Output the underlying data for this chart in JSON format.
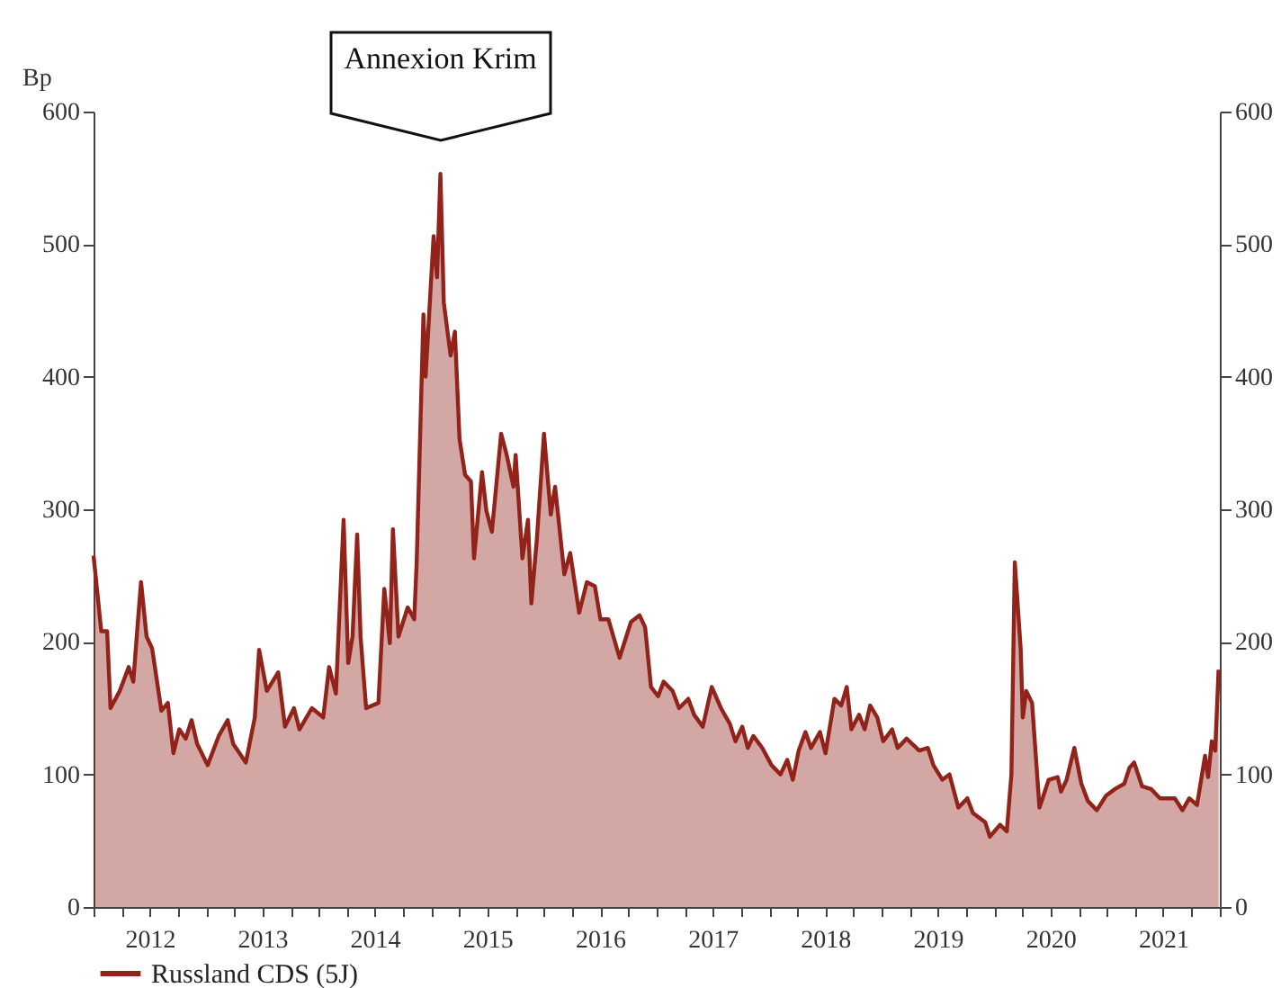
{
  "chart_data": {
    "type": "area",
    "ylabel": "Bp",
    "annotations": [
      "Annexion Krim"
    ],
    "x": [
      "2012-01-01",
      "2012-01-26",
      "2012-02-14",
      "2012-02-25",
      "2012-03-26",
      "2012-04-24",
      "2012-05-09",
      "2012-05-23",
      "2012-06-03",
      "2012-06-21",
      "2012-07-09",
      "2012-08-08",
      "2012-08-29",
      "2012-09-16",
      "2012-10-05",
      "2012-10-26",
      "2012-11-14",
      "2012-12-02",
      "2013-01-05",
      "2013-02-10",
      "2013-03-11",
      "2013-03-29",
      "2013-05-09",
      "2013-06-07",
      "2013-06-21",
      "2013-07-16",
      "2013-08-22",
      "2013-09-13",
      "2013-10-12",
      "2013-10-30",
      "2013-12-09",
      "2014-01-15",
      "2014-02-03",
      "2014-02-25",
      "2014-03-22",
      "2014-04-06",
      "2014-04-20",
      "2014-05-05",
      "2014-05-16",
      "2014-06-03",
      "2014-07-13",
      "2014-08-01",
      "2014-08-19",
      "2014-08-29",
      "2014-09-16",
      "2014-10-16",
      "2014-11-06",
      "2014-11-14",
      "2014-12-06",
      "2014-12-13",
      "2015-01-08",
      "2015-01-19",
      "2015-01-30",
      "2015-02-10",
      "2015-03-04",
      "2015-03-18",
      "2015-04-02",
      "2015-04-20",
      "2015-05-09",
      "2015-05-19",
      "2015-06-14",
      "2015-06-28",
      "2015-07-16",
      "2015-08-15",
      "2015-09-02",
      "2015-09-24",
      "2015-10-01",
      "2015-10-23",
      "2015-11-10",
      "2015-11-21",
      "2015-12-09",
      "2016-01-01",
      "2016-01-23",
      "2016-02-06",
      "2016-03-07",
      "2016-03-26",
      "2016-04-24",
      "2016-05-19",
      "2016-06-14",
      "2016-07-02",
      "2016-07-28",
      "2016-09-02",
      "2016-10-09",
      "2016-11-06",
      "2016-11-24",
      "2016-12-13",
      "2017-01-05",
      "2017-01-23",
      "2017-02-21",
      "2017-03-14",
      "2017-04-13",
      "2017-05-02",
      "2017-05-30",
      "2017-06-28",
      "2017-07-28",
      "2017-08-26",
      "2017-09-13",
      "2017-10-05",
      "2017-10-23",
      "2017-11-10",
      "2017-12-09",
      "2018-01-08",
      "2018-02-06",
      "2018-02-28",
      "2018-03-18",
      "2018-04-06",
      "2018-04-28",
      "2018-05-16",
      "2018-06-14",
      "2018-07-02",
      "2018-07-31",
      "2018-08-22",
      "2018-09-09",
      "2018-09-24",
      "2018-10-19",
      "2018-11-06",
      "2018-11-24",
      "2018-12-17",
      "2019-01-05",
      "2019-02-03",
      "2019-02-21",
      "2019-03-22",
      "2019-05-02",
      "2019-05-30",
      "2019-06-17",
      "2019-07-16",
      "2019-08-08",
      "2019-09-06",
      "2019-10-05",
      "2019-10-23",
      "2019-12-02",
      "2019-12-17",
      "2020-01-19",
      "2020-02-10",
      "2020-02-25",
      "2020-03-07",
      "2020-03-26",
      "2020-04-02",
      "2020-04-13",
      "2020-05-02",
      "2020-05-26",
      "2020-06-25",
      "2020-07-24",
      "2020-08-04",
      "2020-08-22",
      "2020-09-16",
      "2020-10-09",
      "2020-10-30",
      "2020-11-28",
      "2020-12-28",
      "2021-01-26",
      "2021-02-25",
      "2021-03-14",
      "2021-03-29",
      "2021-04-24",
      "2021-05-23",
      "2021-06-21",
      "2021-08-08",
      "2021-09-02",
      "2021-09-24",
      "2021-10-19",
      "2021-11-14",
      "2021-11-24",
      "2021-12-06",
      "2021-12-17",
      "2021-12-28"
    ],
    "series": [
      {
        "name": "Russland CDS (5J)",
        "color": "#92231a",
        "values": [
          265,
          208,
          208,
          150,
          163,
          181,
          170,
          213,
          245,
          204,
          195,
          148,
          154,
          116,
          134,
          127,
          141,
          123,
          107,
          129,
          141,
          123,
          109,
          143,
          194,
          163,
          177,
          136,
          150,
          134,
          150,
          143,
          181,
          161,
          292,
          184,
          204,
          281,
          204,
          150,
          154,
          240,
          199,
          285,
          204,
          226,
          217,
          260,
          447,
          400,
          506,
          475,
          553,
          456,
          416,
          434,
          353,
          326,
          321,
          263,
          328,
          299,
          283,
          357,
          341,
          317,
          341,
          263,
          292,
          229,
          278,
          357,
          296,
          317,
          251,
          267,
          222,
          245,
          242,
          217,
          217,
          188,
          215,
          220,
          211,
          166,
          159,
          170,
          163,
          150,
          157,
          145,
          136,
          166,
          150,
          138,
          125,
          136,
          120,
          129,
          120,
          107,
          100,
          111,
          96,
          118,
          132,
          120,
          132,
          116,
          157,
          152,
          166,
          134,
          145,
          134,
          152,
          143,
          125,
          134,
          120,
          127,
          118,
          120,
          107,
          96,
          100,
          75,
          82,
          71,
          64,
          53,
          62,
          57,
          100,
          260,
          195,
          143,
          163,
          154,
          75,
          96,
          98,
          87,
          96,
          120,
          93,
          80,
          73,
          84,
          89,
          93,
          105,
          109,
          91,
          89,
          82,
          82,
          73,
          82,
          77,
          114,
          98,
          125,
          118,
          179
        ]
      }
    ],
    "xlim": [
      "2012-01-01",
      "2022-01-01"
    ],
    "xticks": [
      {
        "value": "2012-01-01",
        "label": null
      },
      {
        "value": "2012-04-01",
        "label": null
      },
      {
        "value": "2012-07-01",
        "label": "2012"
      },
      {
        "value": "2012-10-01",
        "label": null
      },
      {
        "value": "2013-01-01",
        "label": null
      },
      {
        "value": "2013-04-01",
        "label": null
      },
      {
        "value": "2013-07-01",
        "label": "2013"
      },
      {
        "value": "2013-10-01",
        "label": null
      },
      {
        "value": "2014-01-01",
        "label": null
      },
      {
        "value": "2014-04-01",
        "label": null
      },
      {
        "value": "2014-07-01",
        "label": "2014"
      },
      {
        "value": "2014-10-01",
        "label": null
      },
      {
        "value": "2015-01-01",
        "label": null
      },
      {
        "value": "2015-04-01",
        "label": null
      },
      {
        "value": "2015-07-01",
        "label": "2015"
      },
      {
        "value": "2015-10-01",
        "label": null
      },
      {
        "value": "2016-01-01",
        "label": null
      },
      {
        "value": "2016-04-01",
        "label": null
      },
      {
        "value": "2016-07-01",
        "label": "2016"
      },
      {
        "value": "2016-10-01",
        "label": null
      },
      {
        "value": "2017-01-01",
        "label": null
      },
      {
        "value": "2017-04-01",
        "label": null
      },
      {
        "value": "2017-07-01",
        "label": "2017"
      },
      {
        "value": "2017-10-01",
        "label": null
      },
      {
        "value": "2018-01-01",
        "label": null
      },
      {
        "value": "2018-04-01",
        "label": null
      },
      {
        "value": "2018-07-01",
        "label": "2018"
      },
      {
        "value": "2018-10-01",
        "label": null
      },
      {
        "value": "2019-01-01",
        "label": null
      },
      {
        "value": "2019-04-01",
        "label": null
      },
      {
        "value": "2019-07-01",
        "label": "2019"
      },
      {
        "value": "2019-10-01",
        "label": null
      },
      {
        "value": "2020-01-01",
        "label": null
      },
      {
        "value": "2020-04-01",
        "label": null
      },
      {
        "value": "2020-07-01",
        "label": "2020"
      },
      {
        "value": "2020-10-01",
        "label": null
      },
      {
        "value": "2021-01-01",
        "label": null
      },
      {
        "value": "2021-04-01",
        "label": null
      },
      {
        "value": "2021-07-01",
        "label": "2021"
      },
      {
        "value": "2021-10-01",
        "label": null
      },
      {
        "value": "2022-01-01",
        "label": null
      }
    ],
    "ylim": [
      0,
      600
    ],
    "yticks": [
      0,
      100,
      200,
      300,
      400,
      500,
      600
    ],
    "y2lim": [
      0,
      600
    ],
    "y2ticks": [
      0,
      100,
      200,
      300,
      400,
      500,
      600
    ],
    "grid": false,
    "legend": "bottom left"
  }
}
